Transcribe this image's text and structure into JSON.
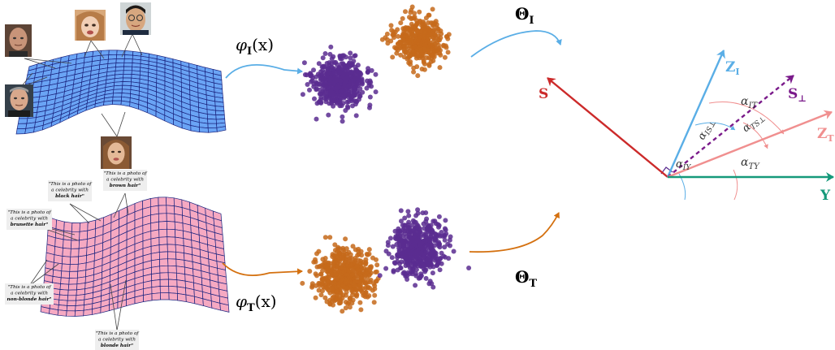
{
  "colors": {
    "image_branch": "#5aaee6",
    "text_branch": "#d4700f",
    "purple": "#5b2d90",
    "orange": "#c56a1b",
    "red": "#cc2a2a",
    "pink": "#f08f8f",
    "green": "#15997a",
    "dark_purple": "#7a1a8a",
    "mesh_blue": "#6aa4f5",
    "mesh_pink": "#f6a9c2",
    "mesh_line": "#1a237e"
  },
  "image_branch": {
    "encoder_label": "φ",
    "encoder_sub": "I",
    "encoder_arg": "(x)",
    "head_label": "Θ",
    "head_sub": "I",
    "face_icons": [
      "bald-man-face",
      "girl-face",
      "man-with-glasses-face",
      "older-man-face",
      "woman-face"
    ]
  },
  "text_branch": {
    "encoder_label": "φ",
    "encoder_sub": "T",
    "encoder_arg": "(x)",
    "head_label": "Θ",
    "head_sub": "T",
    "captions": [
      {
        "line1": "\"This is a photo of",
        "line2": "a celebrity with",
        "line3": "brown hair\""
      },
      {
        "line1": "\"This is a photo of",
        "line2": "a celebrity with",
        "line3": "black hair\""
      },
      {
        "line1": "\"This is a photo of",
        "line2": "a celebrity with",
        "line3": "brunette hair\""
      },
      {
        "line1": "\"This is a photo of",
        "line2": "a celebrity with",
        "line3": "non-blonde hair\""
      },
      {
        "line1": "\"This is a photo of",
        "line2": "a celebrity with",
        "line3": "blonde hair\""
      }
    ]
  },
  "vector_diagram": {
    "S": {
      "base": "S",
      "sub": ""
    },
    "Z_I": {
      "base": "Z",
      "sub": "I"
    },
    "S_perp": {
      "base": "S",
      "sub": "⊥"
    },
    "Z_T": {
      "base": "Z",
      "sub": "T"
    },
    "Y": {
      "base": "Y",
      "sub": ""
    },
    "angles": {
      "IT": {
        "base": "α",
        "sub": "IT"
      },
      "IS": {
        "base": "α",
        "sub": "IS⊥"
      },
      "TS": {
        "base": "α",
        "sub": "TS⊥"
      },
      "IY": {
        "base": "α",
        "sub": "IY"
      },
      "TY": {
        "base": "α",
        "sub": "TY"
      }
    }
  }
}
